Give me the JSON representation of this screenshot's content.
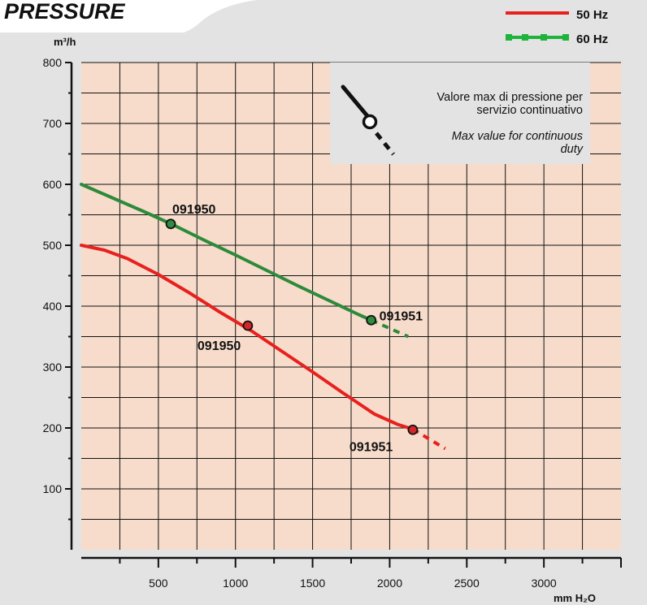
{
  "header": {
    "title": "PRESSURE"
  },
  "legend": {
    "placement": "top-right",
    "items": [
      {
        "label": "50 Hz",
        "color": "#e8201e",
        "marker": "none"
      },
      {
        "label": "60 Hz",
        "color": "#1eb43c",
        "marker": "square"
      }
    ]
  },
  "note": {
    "line1_it": "Valore max di pressione per",
    "line2_it": "servizio continuativo",
    "line1_en": "Max value for continuous",
    "line2_en": "duty",
    "icon": "max-pressure-marker-icon"
  },
  "colors": {
    "plot_background": "#f7dccb",
    "page_background": "#e3e3e3",
    "grid": "#111111",
    "series_50hz": "#e8201e",
    "series_60hz": "#2c8a3a",
    "marker_fill_50hz": "#d2262a",
    "marker_fill_60hz": "#2f8c3f"
  },
  "chart_data": {
    "type": "line",
    "xlabel": "mm H₂O",
    "ylabel": "m³/h",
    "xlim": [
      0,
      3500
    ],
    "ylim": [
      0,
      800
    ],
    "x_ticks": [
      500,
      1000,
      1500,
      2000,
      2500,
      3000
    ],
    "x_tick_labels": [
      "500",
      "1000",
      "1500",
      "2000",
      "2500",
      "3000"
    ],
    "y_ticks": [
      100,
      200,
      300,
      400,
      500,
      600,
      700,
      800
    ],
    "y_tick_labels": [
      "100",
      "200",
      "300",
      "400",
      "500",
      "600",
      "700",
      "800"
    ],
    "grid": true,
    "series": [
      {
        "name": "50 Hz",
        "solid": [
          [
            0,
            500
          ],
          [
            150,
            492
          ],
          [
            300,
            478
          ],
          [
            500,
            452
          ],
          [
            700,
            422
          ],
          [
            900,
            390
          ],
          [
            1100,
            360
          ],
          [
            1300,
            326
          ],
          [
            1500,
            292
          ],
          [
            1700,
            257
          ],
          [
            1900,
            223
          ],
          [
            2050,
            206
          ],
          [
            2150,
            198
          ]
        ],
        "dashed": [
          [
            2150,
            198
          ],
          [
            2360,
            166
          ]
        ],
        "points": [
          {
            "x": 1080,
            "y": 368,
            "label": "091950"
          },
          {
            "x": 2150,
            "y": 197,
            "label": "091951"
          }
        ]
      },
      {
        "name": "60 Hz",
        "solid": [
          [
            0,
            600
          ],
          [
            200,
            578
          ],
          [
            400,
            556
          ],
          [
            600,
            533
          ],
          [
            800,
            508
          ],
          [
            1000,
            484
          ],
          [
            1200,
            459
          ],
          [
            1400,
            434
          ],
          [
            1600,
            410
          ],
          [
            1800,
            386
          ],
          [
            1880,
            377
          ]
        ],
        "dashed": [
          [
            1880,
            377
          ],
          [
            2120,
            350
          ]
        ],
        "points": [
          {
            "x": 580,
            "y": 535,
            "label": "091950"
          },
          {
            "x": 1880,
            "y": 377,
            "label": "091951"
          }
        ]
      }
    ]
  }
}
